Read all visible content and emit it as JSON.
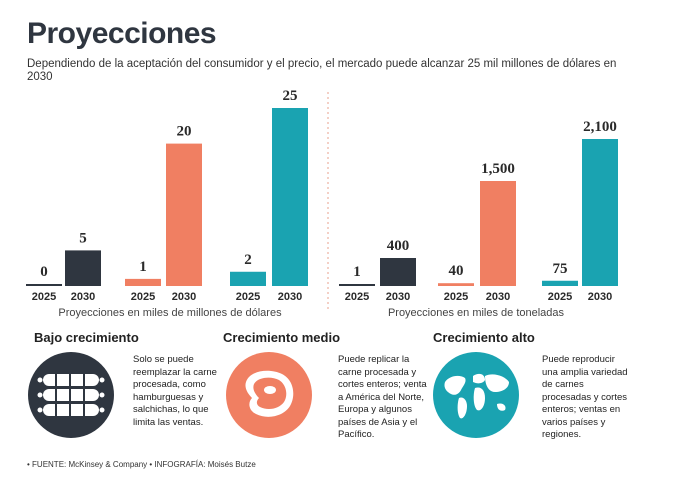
{
  "header": {
    "title": "Proyecciones",
    "subtitle": "Dependiendo de la aceptación del consumidor y el precio, el mercado puede alcanzar 25 mil millones de dólares en 2030"
  },
  "colors": {
    "low": "#2f3640",
    "medium": "#f07f62",
    "high": "#1aa3b1"
  },
  "chart_data": [
    {
      "type": "bar",
      "title": "",
      "xlabel": "Proyecciones en miles de millones de dólares",
      "ylabel": "",
      "categories": [
        "2025",
        "2030",
        "2025",
        "2030",
        "2025",
        "2030"
      ],
      "groups": [
        "Bajo crecimiento",
        "Bajo crecimiento",
        "Crecimiento medio",
        "Crecimiento medio",
        "Crecimiento alto",
        "Crecimiento alto"
      ],
      "values": [
        0,
        5,
        1,
        20,
        2,
        25
      ],
      "value_labels": [
        "0",
        "5",
        "1",
        "20",
        "2",
        "25"
      ],
      "ylim": [
        0,
        25
      ],
      "grid": false,
      "legend": "none"
    },
    {
      "type": "bar",
      "title": "",
      "xlabel": "Proyecciones en miles de toneladas",
      "ylabel": "",
      "categories": [
        "2025",
        "2030",
        "2025",
        "2030",
        "2025",
        "2030"
      ],
      "groups": [
        "Bajo crecimiento",
        "Bajo crecimiento",
        "Crecimiento medio",
        "Crecimiento medio",
        "Crecimiento alto",
        "Crecimiento alto"
      ],
      "values": [
        1,
        400,
        40,
        1500,
        75,
        2100
      ],
      "value_labels": [
        "1",
        "400",
        "40",
        "1,500",
        "75",
        "2,100"
      ],
      "ylim": [
        0,
        2100
      ],
      "grid": false,
      "legend": "none"
    }
  ],
  "scenarios": [
    {
      "title": "Bajo crecimiento",
      "icon": "sausages-icon",
      "description": "Solo se puede reemplazar la carne procesada, como hamburguesas y salchichas, lo que limita las ventas."
    },
    {
      "title": "Crecimiento medio",
      "icon": "steak-icon",
      "description": "Puede replicar la carne procesada y cortes enteros; venta a América del Norte, Europa y algunos países de Asia y el Pacífico."
    },
    {
      "title": "Crecimiento alto",
      "icon": "world-map-icon",
      "description": "Puede reproducir una amplia variedad de carnes procesadas y cortes enteros; ventas en varios países y regiones."
    }
  ],
  "footer": {
    "source": "• FUENTE: McKinsey & Company • INFOGRAFÍA: Moisés Butze"
  }
}
